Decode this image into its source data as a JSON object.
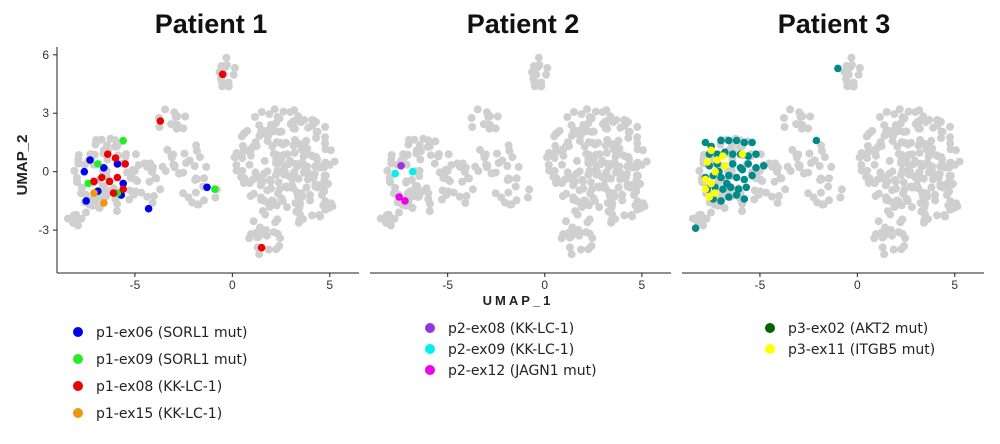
{
  "chart_data": {
    "type": "scatter",
    "xlabel": "UMAP_1",
    "ylabel": "UMAP_2",
    "background_color": "#cfcfcf",
    "panels": [
      {
        "title": "Patient 1",
        "xlim": [
          -9,
          6.5
        ],
        "ylim": [
          -5.2,
          6.4
        ],
        "x_ticks": [
          -5,
          0,
          5
        ],
        "y_ticks": [
          6,
          3,
          0,
          -3
        ],
        "series": [
          {
            "name": "p1-ex06 (SORL1 mut)",
            "color": "#0000ee",
            "points": [
              [
                -7.3,
                0.6
              ],
              [
                -7.6,
                0.0
              ],
              [
                -6.6,
                0.2
              ],
              [
                -5.9,
                0.4
              ],
              [
                -5.6,
                -0.6
              ],
              [
                -6.9,
                -1.0
              ],
              [
                -7.5,
                -1.5
              ],
              [
                -5.7,
                -1.2
              ],
              [
                -4.3,
                -1.9
              ],
              [
                -1.3,
                -0.8
              ]
            ]
          },
          {
            "name": "p1-ex09 (SORL1 mut)",
            "color": "#22ee22",
            "points": [
              [
                -5.6,
                1.6
              ],
              [
                -6.9,
                0.4
              ],
              [
                -7.4,
                -0.6
              ],
              [
                -5.9,
                -1.1
              ],
              [
                -0.9,
                -0.9
              ]
            ]
          },
          {
            "name": "p1-ex08 (KK-LC-1)",
            "color": "#ee0000",
            "points": [
              [
                -0.5,
                5.0
              ],
              [
                -3.7,
                2.6
              ],
              [
                -6.4,
                0.9
              ],
              [
                -6.0,
                0.7
              ],
              [
                -5.5,
                0.4
              ],
              [
                -6.7,
                -0.3
              ],
              [
                -6.3,
                -0.5
              ],
              [
                -5.9,
                -0.3
              ],
              [
                -7.1,
                -0.5
              ],
              [
                -5.6,
                -0.9
              ],
              [
                -6.1,
                -1.1
              ],
              [
                1.5,
                -3.9
              ]
            ]
          },
          {
            "name": "p1-ex15 (KK-LC-1)",
            "color": "#f0960f",
            "points": [
              [
                -7.1,
                -1.1
              ],
              [
                -6.6,
                -1.6
              ]
            ]
          }
        ]
      },
      {
        "title": "Patient 2",
        "xlim": [
          -9,
          6.5
        ],
        "ylim": [
          -5.2,
          6.4
        ],
        "x_ticks": [
          -5,
          0,
          5
        ],
        "series": [
          {
            "name": "p2-ex08 (KK-LC-1)",
            "color": "#9933dd",
            "points": [
              [
                -7.4,
                0.3
              ]
            ]
          },
          {
            "name": "p2-ex09 (KK-LC-1)",
            "color": "#00f0f0",
            "points": [
              [
                -7.7,
                -0.1
              ],
              [
                -6.8,
                -0.0
              ]
            ]
          },
          {
            "name": "p2-ex12 (JAGN1 mut)",
            "color": "#ee00ee",
            "points": [
              [
                -7.5,
                -1.3
              ],
              [
                -7.2,
                -1.5
              ]
            ]
          }
        ]
      },
      {
        "title": "Patient 3",
        "xlim": [
          -9,
          6.5
        ],
        "ylim": [
          -5.2,
          6.4
        ],
        "x_ticks": [
          -5,
          0,
          5
        ],
        "series": [
          {
            "name": "p3-ex02 (AKT2 mut)",
            "color": "#006400",
            "points": []
          },
          {
            "name": "",
            "color": "#008b8b",
            "points": [
              [
                -1.0,
                5.3
              ],
              [
                -2.1,
                1.6
              ],
              [
                -8.3,
                -2.9
              ],
              [
                -7.8,
                1.5
              ],
              [
                -7.5,
                1.3
              ],
              [
                -7.0,
                1.6
              ],
              [
                -6.6,
                1.6
              ],
              [
                -6.2,
                1.6
              ],
              [
                -5.8,
                1.5
              ],
              [
                -5.4,
                1.5
              ],
              [
                -7.6,
                0.9
              ],
              [
                -7.2,
                0.9
              ],
              [
                -6.8,
                1.0
              ],
              [
                -6.4,
                0.9
              ],
              [
                -6.0,
                0.9
              ],
              [
                -5.6,
                0.8
              ],
              [
                -5.2,
                0.9
              ],
              [
                -4.8,
                0.3
              ],
              [
                -7.6,
                0.3
              ],
              [
                -7.2,
                0.4
              ],
              [
                -6.8,
                0.3
              ],
              [
                -6.4,
                0.4
              ],
              [
                -6.0,
                0.2
              ],
              [
                -5.6,
                0.4
              ],
              [
                -5.2,
                0.2
              ],
              [
                -7.8,
                -0.3
              ],
              [
                -7.4,
                -0.2
              ],
              [
                -7.0,
                -0.3
              ],
              [
                -6.6,
                -0.2
              ],
              [
                -6.2,
                -0.3
              ],
              [
                -5.8,
                -0.4
              ],
              [
                -5.4,
                -0.2
              ],
              [
                -7.7,
                -0.9
              ],
              [
                -7.3,
                -0.8
              ],
              [
                -6.9,
                -0.9
              ],
              [
                -6.5,
                -0.8
              ],
              [
                -6.1,
                -0.9
              ],
              [
                -5.7,
                -0.8
              ],
              [
                -7.4,
                -1.4
              ],
              [
                -7.0,
                -1.5
              ],
              [
                -6.6,
                -1.3
              ],
              [
                -6.2,
                -1.2
              ],
              [
                -5.8,
                -1.4
              ],
              [
                -5.9,
                0.1
              ],
              [
                -6.7,
                -0.6
              ],
              [
                -7.1,
                0.0
              ]
            ]
          },
          {
            "name": "p3-ex11 (ITGB5 mut)",
            "color": "#ffff00",
            "points": [
              [
                -7.5,
                1.1
              ],
              [
                -7.2,
                0.6
              ],
              [
                -7.7,
                0.5
              ],
              [
                -7.3,
                0.0
              ],
              [
                -7.8,
                -0.4
              ],
              [
                -7.5,
                -0.6
              ],
              [
                -7.8,
                -0.9
              ],
              [
                -7.3,
                -1.1
              ],
              [
                -6.9,
                0.8
              ],
              [
                -6.8,
                0.3
              ],
              [
                -5.9,
                0.9
              ],
              [
                -7.6,
                -1.3
              ]
            ]
          }
        ]
      }
    ]
  }
}
